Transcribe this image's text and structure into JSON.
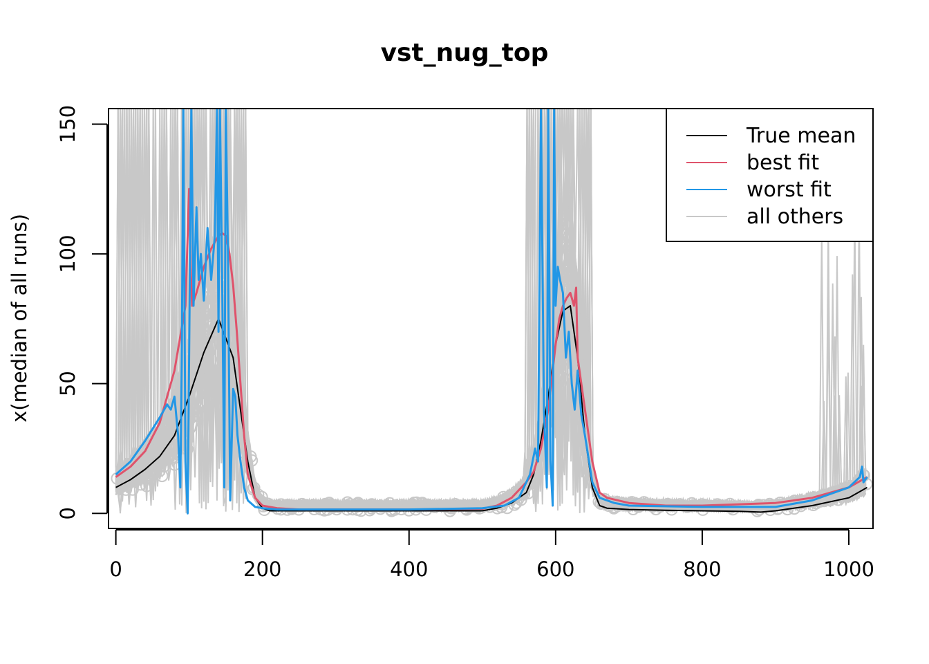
{
  "chart_data": {
    "type": "line",
    "title": "vst_nug_top",
    "xlabel": "",
    "ylabel": "x(median of all runs)",
    "xlim": [
      -10,
      1033
    ],
    "ylim": [
      -5.8,
      156
    ],
    "x_ticks": [
      0,
      200,
      400,
      600,
      800,
      1000
    ],
    "y_ticks": [
      0,
      50,
      100,
      150
    ],
    "legend_position": "top-right",
    "series": [
      {
        "name": "True mean",
        "color": "#000000",
        "x": [
          0,
          20,
          40,
          60,
          80,
          100,
          120,
          140,
          160,
          180,
          190,
          200,
          210,
          250,
          300,
          350,
          400,
          450,
          500,
          520,
          540,
          560,
          570,
          580,
          590,
          600,
          610,
          620,
          630,
          640,
          650,
          660,
          670,
          700,
          750,
          800,
          850,
          880,
          900,
          950,
          1000,
          1025
        ],
        "y": [
          10,
          13,
          17,
          22,
          30,
          45,
          62,
          75,
          60,
          20,
          6,
          2,
          1,
          1,
          1,
          1,
          1,
          1,
          1,
          2,
          4,
          8,
          15,
          28,
          45,
          65,
          78,
          80,
          60,
          30,
          10,
          3,
          2,
          1.5,
          1.2,
          1,
          0.8,
          0.5,
          1,
          3,
          6,
          10
        ]
      },
      {
        "name": "best fit",
        "color": "#df536b",
        "x": [
          0,
          20,
          40,
          60,
          80,
          95,
          100,
          102,
          104,
          110,
          120,
          130,
          140,
          145,
          150,
          155,
          160,
          165,
          170,
          175,
          180,
          190,
          200,
          220,
          250,
          300,
          400,
          500,
          520,
          540,
          560,
          570,
          580,
          590,
          600,
          605,
          610,
          615,
          620,
          625,
          628,
          630,
          640,
          650,
          660,
          670,
          700,
          750,
          800,
          850,
          900,
          950,
          1000,
          1025
        ],
        "y": [
          14,
          18,
          24,
          35,
          55,
          80,
          125,
          95,
          80,
          85,
          95,
          102,
          107,
          108,
          107,
          100,
          88,
          70,
          50,
          30,
          15,
          6,
          3,
          2,
          1.5,
          1.5,
          1.5,
          1.8,
          3,
          6,
          12,
          16,
          25,
          40,
          65,
          75,
          80,
          83,
          85,
          80,
          87,
          60,
          40,
          20,
          8,
          6,
          4,
          3,
          3,
          3.5,
          4,
          6,
          10,
          14
        ]
      },
      {
        "name": "worst fit",
        "color": "#2297e6",
        "x": [
          0,
          20,
          40,
          60,
          70,
          75,
          80,
          85,
          88,
          90,
          92,
          95,
          98,
          100,
          103,
          106,
          110,
          113,
          116,
          120,
          125,
          130,
          135,
          138,
          140,
          142,
          145,
          148,
          150,
          153,
          156,
          160,
          163,
          166,
          170,
          175,
          180,
          190,
          200,
          220,
          250,
          300,
          400,
          500,
          530,
          550,
          565,
          572,
          576,
          580,
          584,
          588,
          590,
          593,
          596,
          598,
          600,
          603,
          606,
          610,
          614,
          618,
          622,
          626,
          630,
          635,
          640,
          650,
          660,
          680,
          700,
          800,
          900,
          950,
          1000,
          1015,
          1018,
          1020,
          1025
        ],
        "y": [
          15,
          20,
          28,
          37,
          42,
          40,
          45,
          30,
          10,
          60,
          156,
          20,
          0,
          60,
          156,
          80,
          118,
          90,
          100,
          82,
          110,
          90,
          107,
          156,
          70,
          156,
          90,
          10,
          156,
          100,
          5,
          48,
          45,
          30,
          20,
          10,
          5,
          2.5,
          2,
          1.5,
          1.5,
          1.5,
          1.5,
          2,
          3,
          6,
          15,
          25,
          20,
          156,
          40,
          10,
          156,
          20,
          3,
          156,
          80,
          95,
          90,
          85,
          60,
          70,
          50,
          40,
          55,
          38,
          30,
          12,
          6,
          4,
          3,
          2.5,
          2.5,
          5,
          10,
          14,
          18,
          12,
          14
        ]
      },
      {
        "name": "all others",
        "color": "#c8c8c8",
        "x": [],
        "y": []
      }
    ]
  }
}
